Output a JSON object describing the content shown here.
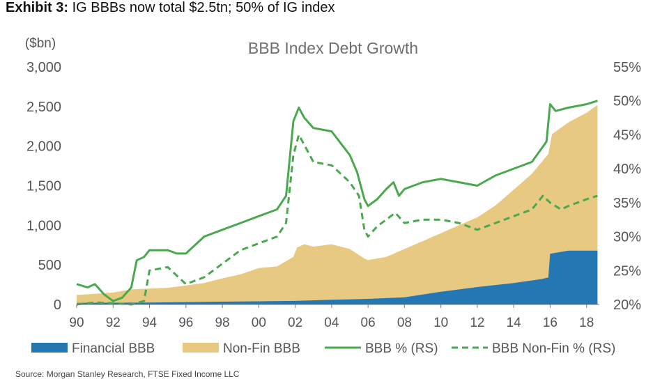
{
  "exhibit": {
    "label": "Exhibit 3:",
    "title": "IG BBBs now total $2.5tn; 50% of IG index"
  },
  "source": "Source: Morgan Stanley Research, FTSE Fixed Income LLC",
  "colors": {
    "financial": "#2477b3",
    "nonfin": "#e8c982",
    "bbb_pct": "#4aa84f",
    "nonfin_pct": "#4aa84f",
    "axis_text": "#555555"
  },
  "chart_data": {
    "type": "area",
    "title": "BBB Index Debt Growth",
    "y_unit_label": "($bn)",
    "xlim": [
      1990,
      2018.7
    ],
    "ylim_left": [
      0,
      3000
    ],
    "ylim_right": [
      20,
      55
    ],
    "x_ticks": [
      1990,
      1992,
      1994,
      1996,
      1998,
      2000,
      2002,
      2004,
      2006,
      2008,
      2010,
      2012,
      2014,
      2016,
      2018
    ],
    "x_tick_labels": [
      "90",
      "92",
      "94",
      "96",
      "98",
      "00",
      "02",
      "04",
      "06",
      "08",
      "10",
      "12",
      "14",
      "16",
      "18"
    ],
    "y_left_ticks": [
      0,
      500,
      1000,
      1500,
      2000,
      2500,
      3000
    ],
    "y_left_tick_labels": [
      "0",
      "500",
      "1,000",
      "1,500",
      "2,000",
      "2,500",
      "3,000"
    ],
    "y_right_ticks": [
      20,
      25,
      30,
      35,
      40,
      45,
      50,
      55
    ],
    "y_right_tick_labels": [
      "20%",
      "25%",
      "30%",
      "35%",
      "40%",
      "45%",
      "50%",
      "55%"
    ],
    "legend": [
      "Financial BBB",
      "Non-Fin BBB",
      "BBB % (RS)",
      "BBB Non-Fin % (RS)"
    ],
    "series": [
      {
        "name": "Financial BBB",
        "axis": "left",
        "kind": "area-stacked",
        "points": [
          [
            1990,
            20
          ],
          [
            1992,
            22
          ],
          [
            1994,
            25
          ],
          [
            1996,
            30
          ],
          [
            1998,
            35
          ],
          [
            2000,
            40
          ],
          [
            2002,
            45
          ],
          [
            2004,
            60
          ],
          [
            2006,
            70
          ],
          [
            2008,
            90
          ],
          [
            2010,
            160
          ],
          [
            2012,
            220
          ],
          [
            2014,
            270
          ],
          [
            2015.5,
            320
          ],
          [
            2015.9,
            340
          ],
          [
            2016.0,
            640
          ],
          [
            2017,
            680
          ],
          [
            2018.6,
            680
          ]
        ]
      },
      {
        "name": "Non-Fin BBB",
        "axis": "left",
        "kind": "area-stacked-total",
        "points": [
          [
            1990,
            120
          ],
          [
            1992,
            150
          ],
          [
            1993,
            190
          ],
          [
            1994,
            200
          ],
          [
            1995,
            210
          ],
          [
            1996,
            240
          ],
          [
            1997,
            270
          ],
          [
            1998,
            330
          ],
          [
            1999,
            380
          ],
          [
            2000,
            460
          ],
          [
            2001,
            480
          ],
          [
            2001.9,
            600
          ],
          [
            2002.1,
            720
          ],
          [
            2002.5,
            760
          ],
          [
            2003,
            730
          ],
          [
            2004,
            760
          ],
          [
            2005,
            700
          ],
          [
            2005.8,
            580
          ],
          [
            2006,
            560
          ],
          [
            2007,
            600
          ],
          [
            2008,
            700
          ],
          [
            2009,
            800
          ],
          [
            2010,
            900
          ],
          [
            2011,
            1000
          ],
          [
            2012,
            1100
          ],
          [
            2013,
            1250
          ],
          [
            2014,
            1450
          ],
          [
            2015,
            1650
          ],
          [
            2015.9,
            1900
          ],
          [
            2016.1,
            2150
          ],
          [
            2017,
            2300
          ],
          [
            2018,
            2420
          ],
          [
            2018.6,
            2520
          ]
        ]
      },
      {
        "name": "BBB % (RS)",
        "axis": "right",
        "kind": "line-solid",
        "points": [
          [
            1990,
            23
          ],
          [
            1990.6,
            22.5
          ],
          [
            1991,
            23
          ],
          [
            1991.5,
            21.5
          ],
          [
            1992,
            20.5
          ],
          [
            1992.5,
            21
          ],
          [
            1993,
            22.5
          ],
          [
            1993.3,
            26.5
          ],
          [
            1993.7,
            27
          ],
          [
            1994,
            28
          ],
          [
            1995,
            28
          ],
          [
            1995.5,
            27.5
          ],
          [
            1996,
            27.5
          ],
          [
            1997,
            30
          ],
          [
            1998,
            31
          ],
          [
            1999,
            32
          ],
          [
            2000,
            33
          ],
          [
            2001,
            34
          ],
          [
            2001.5,
            36
          ],
          [
            2001.9,
            47
          ],
          [
            2002.2,
            49
          ],
          [
            2002.5,
            47.5
          ],
          [
            2003,
            46
          ],
          [
            2004,
            45.5
          ],
          [
            2005,
            42
          ],
          [
            2005.4,
            39.5
          ],
          [
            2005.8,
            35.5
          ],
          [
            2006,
            34.5
          ],
          [
            2006.5,
            35.5
          ],
          [
            2007,
            37
          ],
          [
            2007.4,
            38
          ],
          [
            2007.7,
            36
          ],
          [
            2008,
            37
          ],
          [
            2009,
            38
          ],
          [
            2010,
            38.5
          ],
          [
            2011,
            38
          ],
          [
            2012,
            37.5
          ],
          [
            2013,
            39
          ],
          [
            2014,
            40
          ],
          [
            2015,
            41
          ],
          [
            2015.8,
            44
          ],
          [
            2016,
            49.5
          ],
          [
            2016.3,
            48.5
          ],
          [
            2017,
            49
          ],
          [
            2018,
            49.5
          ],
          [
            2018.6,
            50
          ]
        ]
      },
      {
        "name": "BBB Non-Fin % (RS)",
        "axis": "right",
        "kind": "line-dashed",
        "points": [
          [
            1990,
            20
          ],
          [
            1991,
            20.3
          ],
          [
            1992,
            20.2
          ],
          [
            1993,
            20
          ],
          [
            1993.7,
            20.5
          ],
          [
            1994,
            25
          ],
          [
            1995,
            25.5
          ],
          [
            1996,
            23
          ],
          [
            1997,
            24
          ],
          [
            1998,
            26
          ],
          [
            1999,
            28
          ],
          [
            2000,
            29
          ],
          [
            2001,
            30
          ],
          [
            2001.5,
            32
          ],
          [
            2001.9,
            42
          ],
          [
            2002.2,
            45
          ],
          [
            2002.5,
            43.5
          ],
          [
            2003,
            41
          ],
          [
            2004,
            40.5
          ],
          [
            2005,
            38
          ],
          [
            2005.5,
            36
          ],
          [
            2005.8,
            31
          ],
          [
            2006,
            30
          ],
          [
            2006.5,
            31.5
          ],
          [
            2007,
            32.5
          ],
          [
            2007.5,
            33.5
          ],
          [
            2008,
            32
          ],
          [
            2009,
            32.5
          ],
          [
            2010,
            32.5
          ],
          [
            2011,
            32
          ],
          [
            2012,
            31
          ],
          [
            2013,
            32
          ],
          [
            2014,
            33
          ],
          [
            2015,
            34
          ],
          [
            2015.6,
            36
          ],
          [
            2016,
            35
          ],
          [
            2016.6,
            34
          ],
          [
            2017,
            34.5
          ],
          [
            2018,
            35.5
          ],
          [
            2018.6,
            36
          ]
        ]
      }
    ]
  }
}
